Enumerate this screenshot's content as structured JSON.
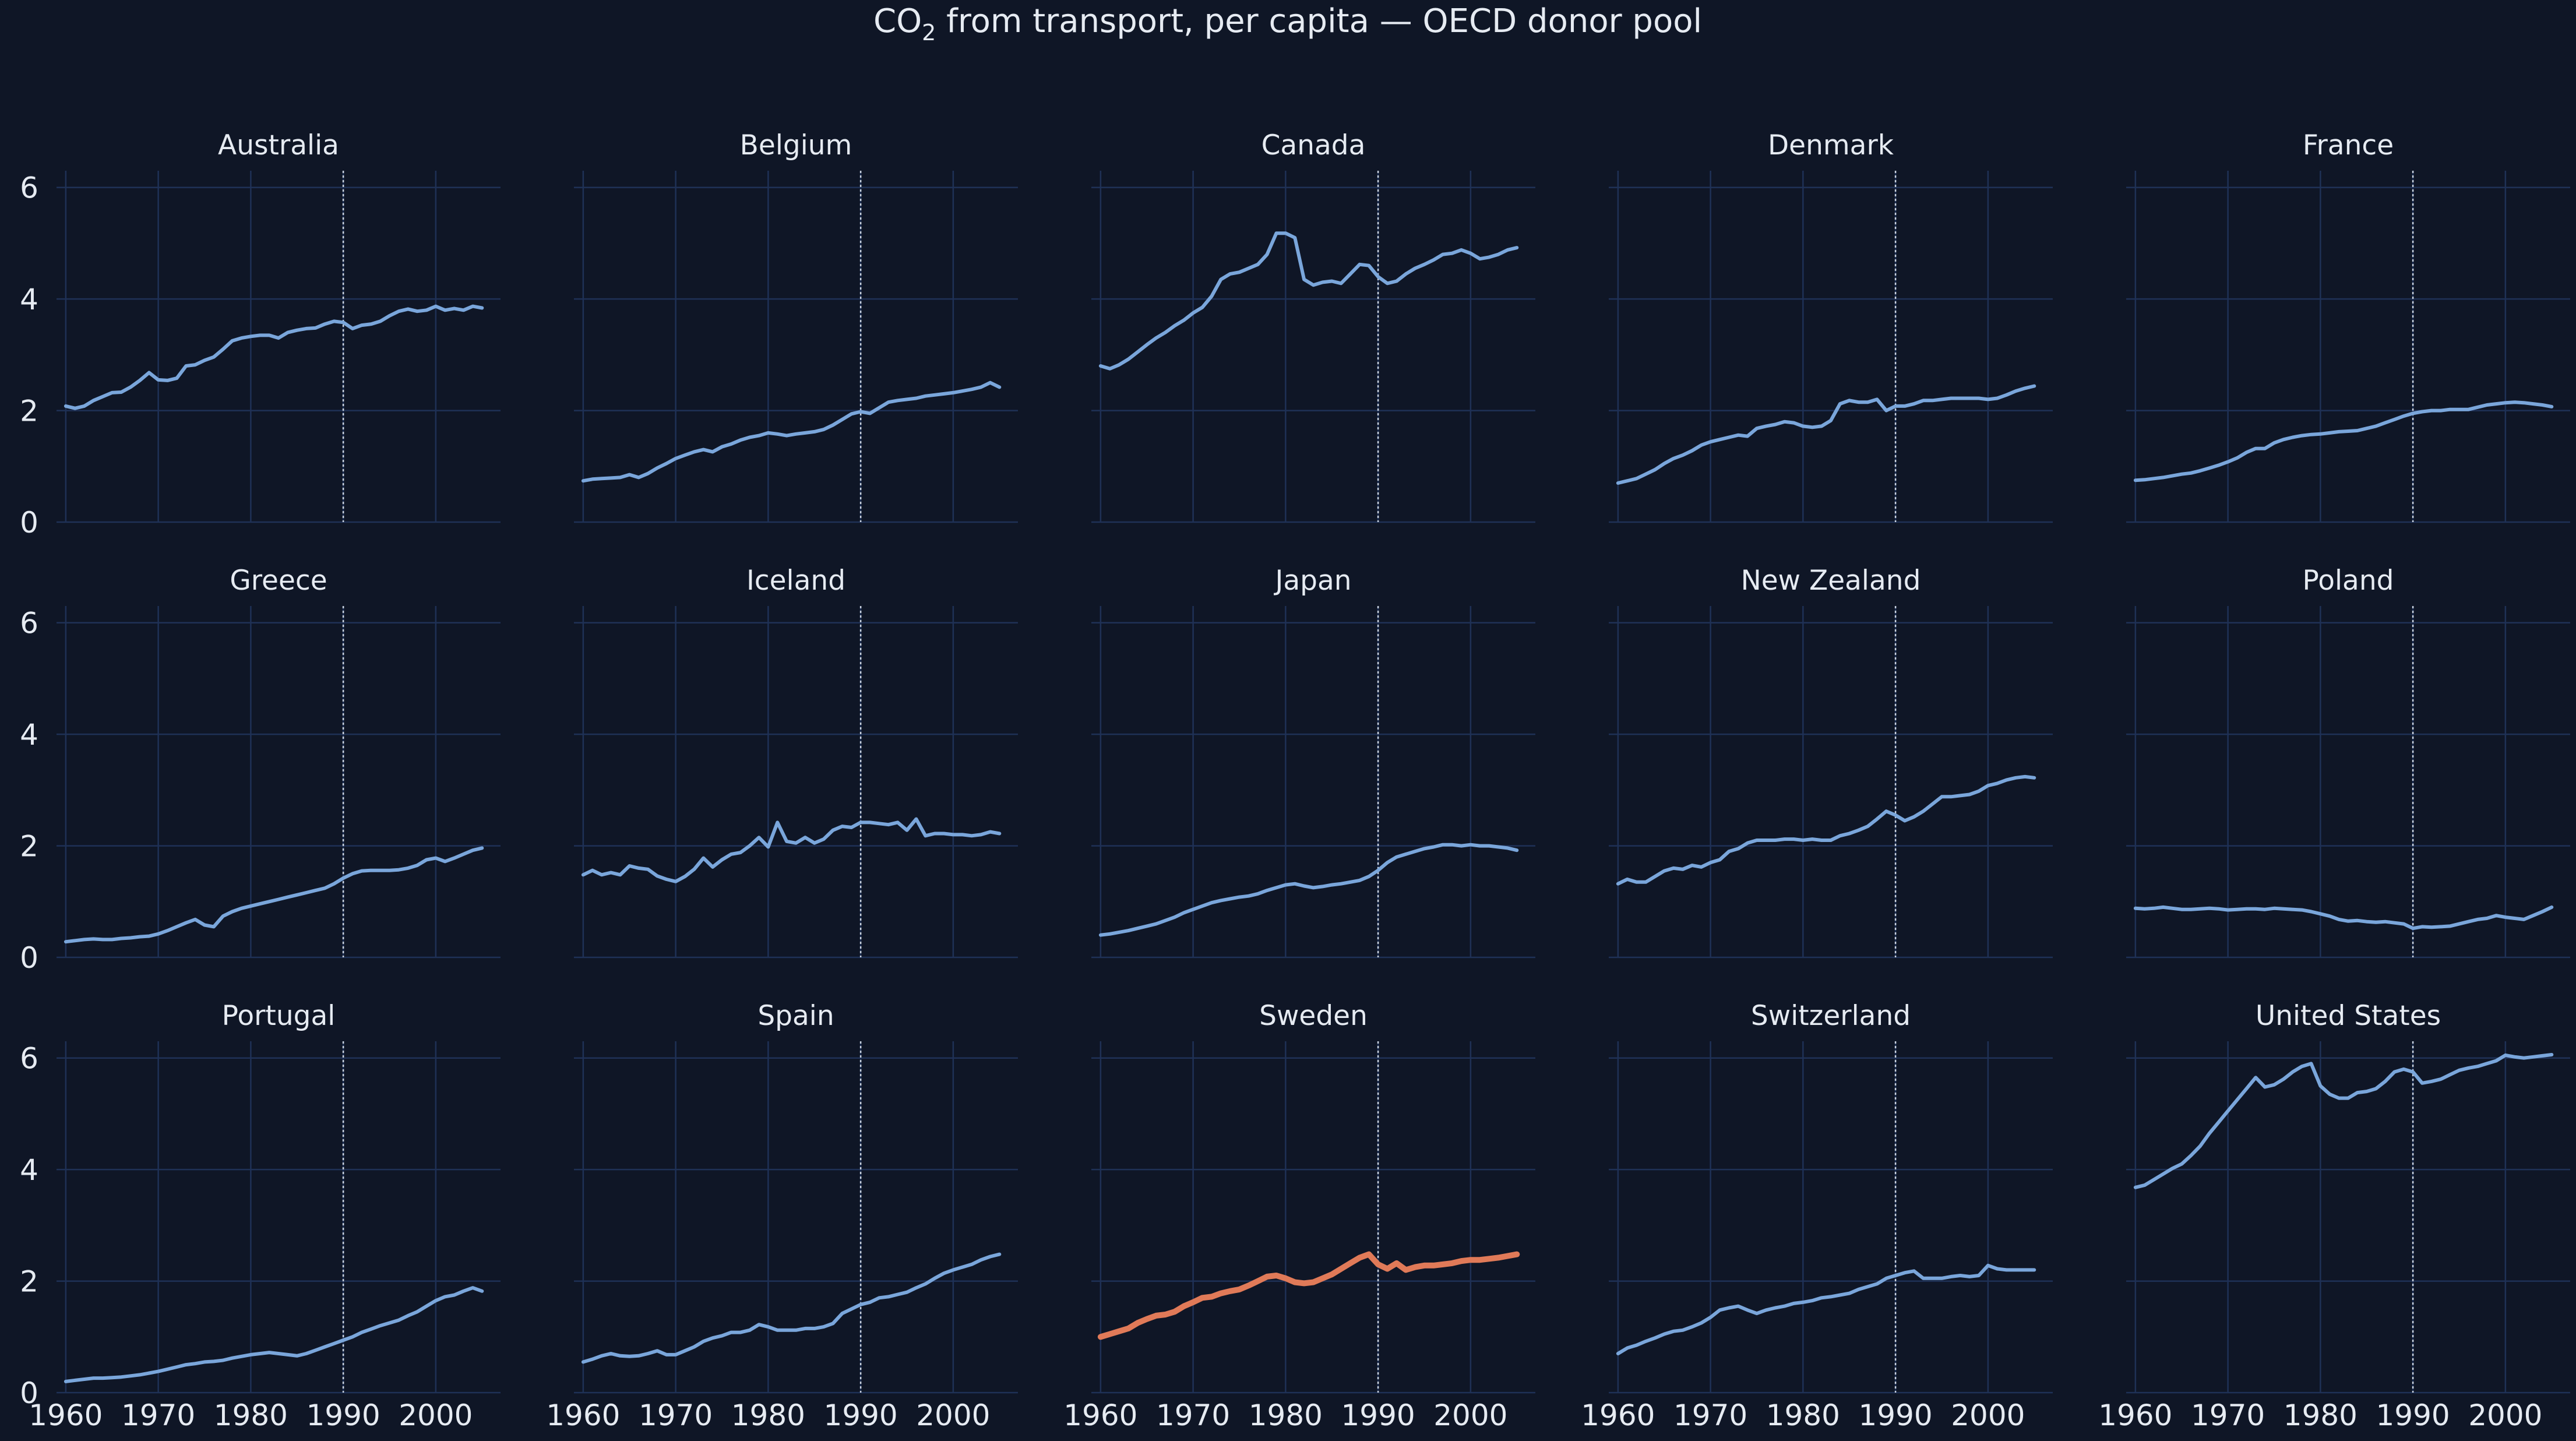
{
  "title_main": "CO",
  "title_sub": "2",
  "title_rest": " from transport, per capita — OECD donor pool",
  "colors": {
    "background": "#0f1626",
    "grid": "#1f3156",
    "donor_line": "#7aa6db",
    "treated_line": "#e07a58",
    "reference_line": "#c9d2e0",
    "text": "#e6ebf2"
  },
  "chart_data": {
    "type": "line",
    "layout": "small-multiples 3x5, shared axes",
    "xlim": [
      1959,
      2007
    ],
    "ylim": [
      0,
      6.3
    ],
    "x_ticks": [
      1960,
      1970,
      1980,
      1990,
      2000
    ],
    "y_ticks": [
      0,
      2,
      4,
      6
    ],
    "reference_x": 1990,
    "grid": true,
    "treated_unit": "Sweden",
    "x_start": 1960,
    "x_end": 2005,
    "panels": [
      {
        "name": "Australia",
        "values": [
          2.08,
          2.04,
          2.08,
          2.18,
          2.25,
          2.32,
          2.33,
          2.42,
          2.54,
          2.68,
          2.55,
          2.54,
          2.58,
          2.8,
          2.82,
          2.9,
          2.96,
          3.1,
          3.25,
          3.3,
          3.33,
          3.35,
          3.35,
          3.3,
          3.4,
          3.44,
          3.47,
          3.48,
          3.55,
          3.6,
          3.58,
          3.47,
          3.53,
          3.55,
          3.6,
          3.7,
          3.78,
          3.82,
          3.78,
          3.8,
          3.87,
          3.8,
          3.83,
          3.8,
          3.87,
          3.84
        ]
      },
      {
        "name": "Belgium",
        "values": [
          0.74,
          0.77,
          0.78,
          0.79,
          0.8,
          0.85,
          0.8,
          0.87,
          0.97,
          1.05,
          1.14,
          1.2,
          1.26,
          1.3,
          1.26,
          1.35,
          1.4,
          1.47,
          1.52,
          1.55,
          1.6,
          1.58,
          1.55,
          1.58,
          1.6,
          1.62,
          1.66,
          1.74,
          1.84,
          1.94,
          1.98,
          1.95,
          2.05,
          2.15,
          2.18,
          2.2,
          2.22,
          2.26,
          2.28,
          2.3,
          2.32,
          2.35,
          2.38,
          2.42,
          2.5,
          2.42
        ]
      },
      {
        "name": "Canada",
        "values": [
          2.8,
          2.75,
          2.82,
          2.92,
          3.05,
          3.18,
          3.3,
          3.4,
          3.52,
          3.62,
          3.75,
          3.85,
          4.05,
          4.35,
          4.45,
          4.48,
          4.55,
          4.62,
          4.8,
          5.18,
          5.18,
          5.1,
          4.35,
          4.25,
          4.3,
          4.32,
          4.28,
          4.45,
          4.62,
          4.6,
          4.4,
          4.28,
          4.32,
          4.45,
          4.55,
          4.62,
          4.7,
          4.8,
          4.82,
          4.88,
          4.82,
          4.72,
          4.75,
          4.8,
          4.88,
          4.92
        ]
      },
      {
        "name": "Denmark",
        "values": [
          0.7,
          0.74,
          0.78,
          0.86,
          0.94,
          1.05,
          1.14,
          1.2,
          1.28,
          1.38,
          1.44,
          1.48,
          1.52,
          1.56,
          1.54,
          1.68,
          1.72,
          1.75,
          1.8,
          1.78,
          1.72,
          1.7,
          1.72,
          1.82,
          2.12,
          2.18,
          2.15,
          2.15,
          2.2,
          2.0,
          2.08,
          2.08,
          2.12,
          2.18,
          2.18,
          2.2,
          2.22,
          2.22,
          2.22,
          2.22,
          2.2,
          2.22,
          2.28,
          2.35,
          2.4,
          2.44
        ]
      },
      {
        "name": "France",
        "values": [
          0.75,
          0.76,
          0.78,
          0.8,
          0.83,
          0.86,
          0.88,
          0.92,
          0.97,
          1.02,
          1.08,
          1.15,
          1.25,
          1.32,
          1.32,
          1.42,
          1.48,
          1.52,
          1.55,
          1.57,
          1.58,
          1.6,
          1.62,
          1.63,
          1.64,
          1.68,
          1.72,
          1.78,
          1.84,
          1.9,
          1.95,
          1.98,
          2.0,
          2.0,
          2.02,
          2.02,
          2.02,
          2.06,
          2.1,
          2.12,
          2.14,
          2.15,
          2.14,
          2.12,
          2.1,
          2.07
        ]
      },
      {
        "name": "Greece",
        "values": [
          0.28,
          0.3,
          0.32,
          0.33,
          0.32,
          0.32,
          0.34,
          0.35,
          0.37,
          0.38,
          0.42,
          0.48,
          0.55,
          0.62,
          0.68,
          0.58,
          0.55,
          0.74,
          0.82,
          0.88,
          0.92,
          0.96,
          1.0,
          1.04,
          1.08,
          1.12,
          1.16,
          1.2,
          1.24,
          1.32,
          1.42,
          1.5,
          1.55,
          1.56,
          1.56,
          1.56,
          1.57,
          1.6,
          1.65,
          1.75,
          1.78,
          1.72,
          1.78,
          1.85,
          1.92,
          1.96
        ]
      },
      {
        "name": "Iceland",
        "values": [
          1.48,
          1.56,
          1.48,
          1.52,
          1.48,
          1.64,
          1.6,
          1.58,
          1.46,
          1.4,
          1.36,
          1.45,
          1.58,
          1.78,
          1.62,
          1.75,
          1.85,
          1.88,
          2.0,
          2.15,
          1.98,
          2.42,
          2.08,
          2.05,
          2.15,
          2.05,
          2.12,
          2.28,
          2.35,
          2.33,
          2.42,
          2.42,
          2.4,
          2.38,
          2.42,
          2.28,
          2.48,
          2.18,
          2.22,
          2.22,
          2.2,
          2.2,
          2.18,
          2.2,
          2.25,
          2.22
        ]
      },
      {
        "name": "Japan",
        "values": [
          0.4,
          0.42,
          0.45,
          0.48,
          0.52,
          0.56,
          0.6,
          0.66,
          0.72,
          0.8,
          0.86,
          0.92,
          0.98,
          1.02,
          1.05,
          1.08,
          1.1,
          1.14,
          1.2,
          1.25,
          1.3,
          1.32,
          1.28,
          1.25,
          1.27,
          1.3,
          1.32,
          1.35,
          1.38,
          1.45,
          1.56,
          1.7,
          1.8,
          1.85,
          1.9,
          1.95,
          1.98,
          2.02,
          2.02,
          2.0,
          2.02,
          2.0,
          2.0,
          1.98,
          1.96,
          1.92
        ]
      },
      {
        "name": "New Zealand",
        "values": [
          1.32,
          1.4,
          1.35,
          1.35,
          1.45,
          1.55,
          1.6,
          1.58,
          1.65,
          1.62,
          1.7,
          1.75,
          1.9,
          1.95,
          2.05,
          2.1,
          2.1,
          2.1,
          2.12,
          2.12,
          2.1,
          2.12,
          2.1,
          2.1,
          2.18,
          2.22,
          2.28,
          2.35,
          2.48,
          2.62,
          2.55,
          2.45,
          2.52,
          2.62,
          2.75,
          2.88,
          2.88,
          2.9,
          2.92,
          2.98,
          3.08,
          3.12,
          3.18,
          3.22,
          3.24,
          3.22
        ]
      },
      {
        "name": "Poland",
        "values": [
          0.88,
          0.87,
          0.88,
          0.9,
          0.88,
          0.86,
          0.86,
          0.87,
          0.88,
          0.87,
          0.85,
          0.86,
          0.87,
          0.87,
          0.86,
          0.88,
          0.87,
          0.86,
          0.85,
          0.82,
          0.78,
          0.74,
          0.68,
          0.65,
          0.66,
          0.64,
          0.63,
          0.64,
          0.62,
          0.6,
          0.52,
          0.55,
          0.54,
          0.55,
          0.56,
          0.6,
          0.64,
          0.68,
          0.7,
          0.75,
          0.72,
          0.7,
          0.68,
          0.75,
          0.82,
          0.9
        ]
      },
      {
        "name": "Portugal",
        "values": [
          0.2,
          0.22,
          0.24,
          0.26,
          0.26,
          0.27,
          0.28,
          0.3,
          0.32,
          0.35,
          0.38,
          0.42,
          0.46,
          0.5,
          0.52,
          0.55,
          0.56,
          0.58,
          0.62,
          0.65,
          0.68,
          0.7,
          0.72,
          0.7,
          0.68,
          0.66,
          0.7,
          0.76,
          0.82,
          0.88,
          0.94,
          1.0,
          1.08,
          1.14,
          1.2,
          1.25,
          1.3,
          1.38,
          1.45,
          1.55,
          1.65,
          1.72,
          1.75,
          1.82,
          1.88,
          1.82
        ]
      },
      {
        "name": "Spain",
        "values": [
          0.55,
          0.6,
          0.66,
          0.7,
          0.66,
          0.65,
          0.66,
          0.7,
          0.75,
          0.68,
          0.68,
          0.75,
          0.82,
          0.92,
          0.98,
          1.02,
          1.08,
          1.08,
          1.12,
          1.22,
          1.18,
          1.12,
          1.12,
          1.12,
          1.15,
          1.15,
          1.18,
          1.24,
          1.42,
          1.5,
          1.58,
          1.62,
          1.7,
          1.72,
          1.76,
          1.8,
          1.88,
          1.95,
          2.05,
          2.14,
          2.2,
          2.25,
          2.3,
          2.38,
          2.44,
          2.48
        ]
      },
      {
        "name": "Sweden",
        "values": [
          1.0,
          1.05,
          1.1,
          1.15,
          1.25,
          1.32,
          1.38,
          1.4,
          1.45,
          1.55,
          1.62,
          1.7,
          1.72,
          1.78,
          1.82,
          1.85,
          1.92,
          2.0,
          2.08,
          2.1,
          2.05,
          1.98,
          1.96,
          1.98,
          2.05,
          2.12,
          2.22,
          2.32,
          2.42,
          2.48,
          2.3,
          2.22,
          2.32,
          2.2,
          2.25,
          2.28,
          2.28,
          2.3,
          2.32,
          2.36,
          2.38,
          2.38,
          2.4,
          2.42,
          2.45,
          2.48
        ]
      },
      {
        "name": "Switzerland",
        "values": [
          0.7,
          0.8,
          0.85,
          0.92,
          0.98,
          1.05,
          1.1,
          1.12,
          1.18,
          1.25,
          1.35,
          1.48,
          1.52,
          1.55,
          1.48,
          1.42,
          1.48,
          1.52,
          1.55,
          1.6,
          1.62,
          1.65,
          1.7,
          1.72,
          1.75,
          1.78,
          1.85,
          1.9,
          1.95,
          2.05,
          2.1,
          2.15,
          2.18,
          2.05,
          2.05,
          2.05,
          2.08,
          2.1,
          2.08,
          2.1,
          2.28,
          2.22,
          2.2,
          2.2,
          2.2,
          2.2
        ]
      },
      {
        "name": "United States",
        "values": [
          3.68,
          3.72,
          3.82,
          3.92,
          4.02,
          4.1,
          4.25,
          4.42,
          4.65,
          4.85,
          5.05,
          5.25,
          5.45,
          5.65,
          5.48,
          5.52,
          5.62,
          5.75,
          5.85,
          5.9,
          5.5,
          5.35,
          5.28,
          5.28,
          5.38,
          5.4,
          5.45,
          5.58,
          5.75,
          5.8,
          5.75,
          5.55,
          5.58,
          5.62,
          5.7,
          5.78,
          5.82,
          5.85,
          5.9,
          5.95,
          6.05,
          6.02,
          6.0,
          6.02,
          6.04,
          6.06
        ]
      }
    ]
  }
}
